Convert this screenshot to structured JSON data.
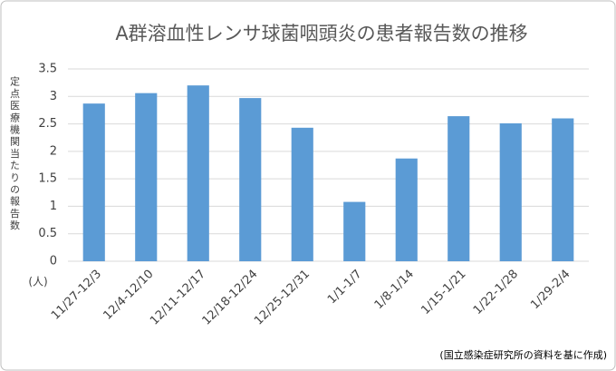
{
  "chart_data": {
    "type": "bar",
    "title": "A群溶血性レンサ球菌咽頭炎の患者報告数の推移",
    "y_label": "定点医療機関当たりの報告数",
    "y_unit": "(人)",
    "source": "(国立感染症研究所の資料を基に作成)",
    "categories": [
      "11/27-12/3",
      "12/4-12/10",
      "12/11-12/17",
      "12/18-12/24",
      "12/25-12/31",
      "1/1-1/7",
      "1/8-1/14",
      "1/15-1/21",
      "1/22-1/28",
      "1/29-2/4"
    ],
    "values": [
      2.87,
      3.06,
      3.2,
      2.97,
      2.43,
      1.08,
      1.87,
      2.64,
      2.51,
      2.6
    ],
    "color": "#5b9bd5",
    "ylim": [
      0,
      3.5
    ],
    "yticks": [
      0,
      0.5,
      1,
      1.5,
      2,
      2.5,
      3,
      3.5
    ],
    "grid": true
  }
}
